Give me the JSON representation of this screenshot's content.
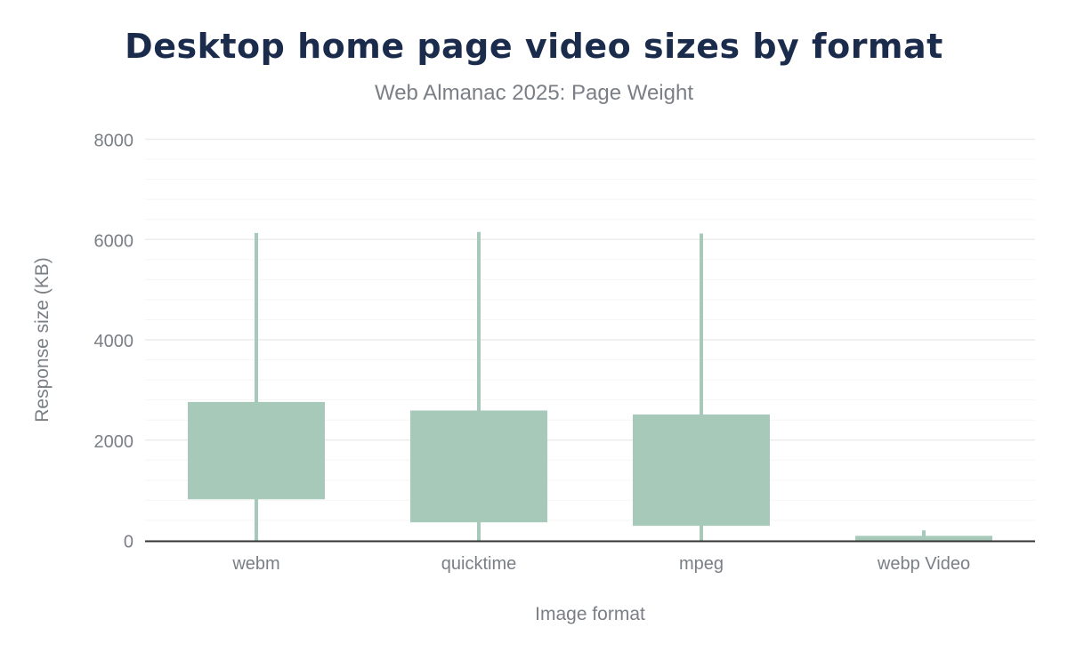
{
  "chart_data": {
    "type": "box",
    "title": "Desktop home page video sizes by format",
    "subtitle": "Web Almanac 2025: Page Weight",
    "xlabel": "Image format",
    "ylabel": "Response size (KB)",
    "ylim": [
      0,
      8000
    ],
    "yticks": [
      0,
      2000,
      4000,
      6000,
      8000
    ],
    "grid": true,
    "color": "#a7c9b9",
    "categories": [
      "webm",
      "quicktime",
      "mpeg",
      "webp Video"
    ],
    "series": [
      {
        "low": 0,
        "q1": 820,
        "q3": 2760,
        "high": 6130
      },
      {
        "low": 0,
        "q1": 360,
        "q3": 2590,
        "high": 6150
      },
      {
        "low": 0,
        "q1": 290,
        "q3": 2510,
        "high": 6120
      },
      {
        "low": 0,
        "q1": 0,
        "q3": 90,
        "high": 200
      }
    ]
  }
}
